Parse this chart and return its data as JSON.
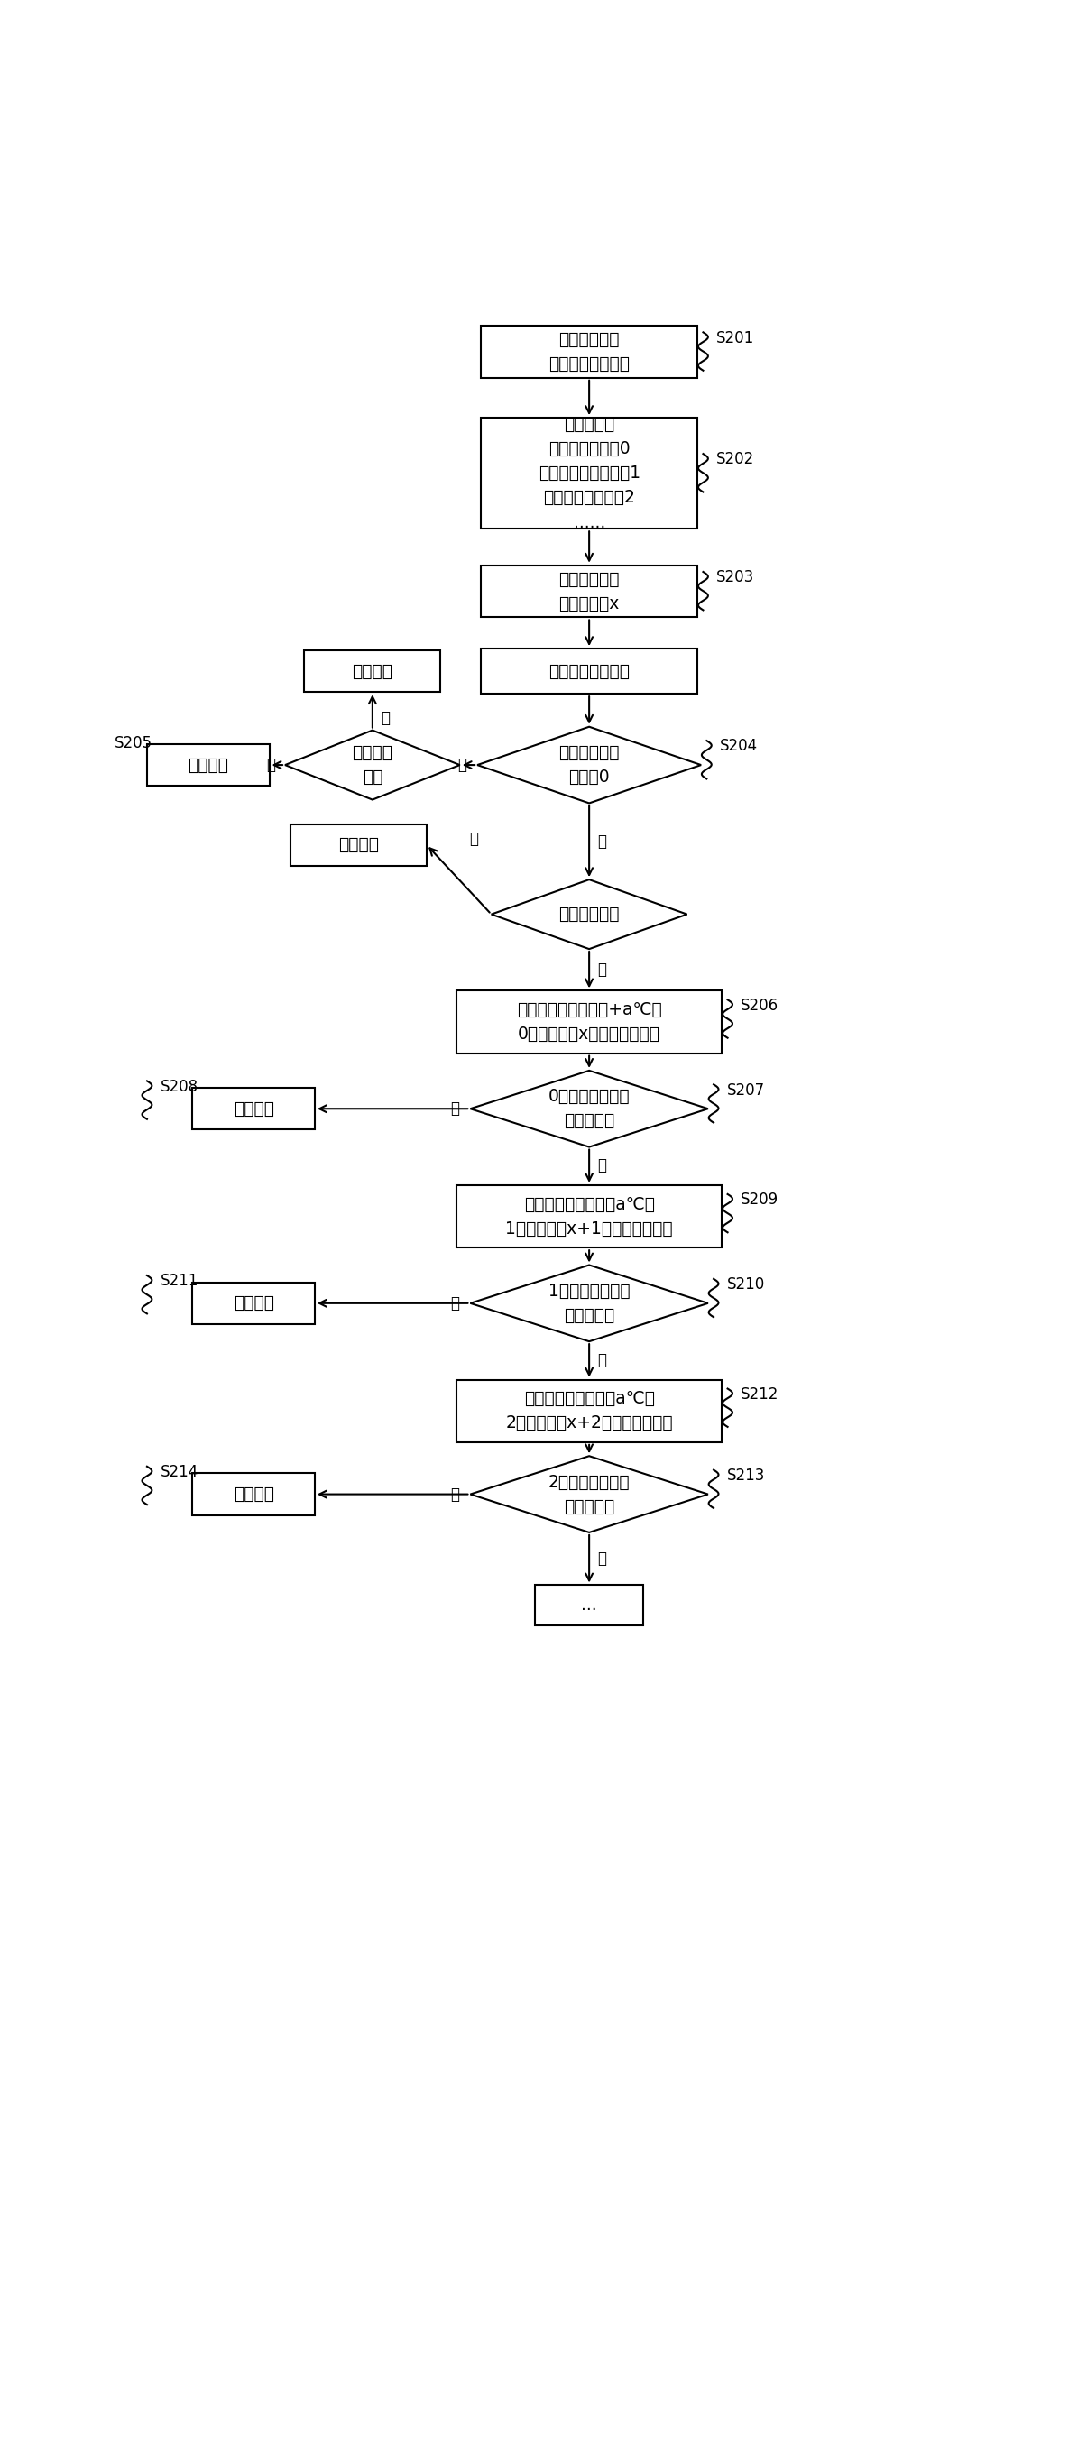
{
  "bg_color": "#ffffff",
  "line_color": "#000000",
  "nodes": {
    "s201": {
      "lines": [
        "根据实际工程",
        "预设库房负荷大小"
      ],
      "label": "S201"
    },
    "s202": {
      "lines": [
        "设定如下：",
        "正常库房位级为0",
        "负荷较小库房位级为1",
        "负荷极小库房位级2",
        "......"
      ],
      "label": "S202"
    },
    "s203": {
      "lines": [
        "设定联合制冷",
        "库房的个数x"
      ],
      "label": "S203"
    },
    "proc1": {
      "lines": [
        "进入制冷判断过程"
      ]
    },
    "keep1": {
      "lines": [
        "保持现状"
      ]
    },
    "s204": {
      "lines": [
        "判断库房位级",
        "是否为0"
      ],
      "label": "S204"
    },
    "need1": {
      "lines": [
        "是否需要",
        "制冷"
      ]
    },
    "s205": {
      "lines": [
        "进入制冷"
      ],
      "label": "S205"
    },
    "keep2": {
      "lines": [
        "保持现状"
      ]
    },
    "need2": {
      "lines": [
        "是否需要制冷"
      ]
    },
    "s206": {
      "lines": [
        "安排温度未低于下限+a℃的",
        "0级库房中的x个一起进入制冷"
      ],
      "label": "S206"
    },
    "s207": {
      "lines": [
        "0级库房满足以上",
        "条件就绪？"
      ],
      "label": "S207"
    },
    "s208": {
      "lines": [
        "进入制冷"
      ],
      "label": "S208"
    },
    "s209": {
      "lines": [
        "安排温度未低于下限a℃的",
        "1级库房中的x+1个一起进入制冷"
      ],
      "label": "S209"
    },
    "s210": {
      "lines": [
        "1级库房满足以上",
        "条件就绪？"
      ],
      "label": "S210"
    },
    "s211": {
      "lines": [
        "进入制冷"
      ],
      "label": "S211"
    },
    "s212": {
      "lines": [
        "安排温度未低于下限a℃的",
        "2级库房中的x+2个一起进入制冷"
      ],
      "label": "S212"
    },
    "s213": {
      "lines": [
        "2级库房满足以上",
        "条件就绪？"
      ],
      "label": "S213"
    },
    "s214": {
      "lines": [
        "进入制冷"
      ],
      "label": "S214"
    },
    "end": {
      "lines": [
        "..."
      ]
    }
  }
}
